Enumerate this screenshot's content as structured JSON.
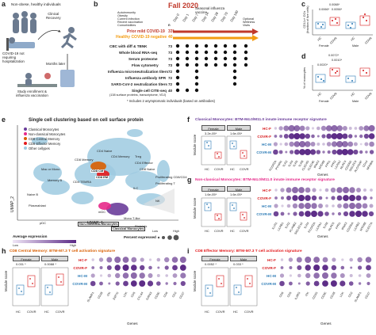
{
  "panels": {
    "a": {
      "label": "a",
      "non_obese": "Non-obese, healthy individuals",
      "clinical_recovery": "Clinical\nRecovery",
      "hosp": "COVID-19 not\nrequiring\nhospitalization",
      "months_later": "Months later",
      "study": "Study enrollment &\ninfluenza vaccination"
    },
    "b": {
      "label": "b",
      "title": "Fall 2020",
      "criteria": [
        "Autoimmunity",
        "Obesity",
        "Current infection",
        "Recent vaccination",
        "Comorbidities"
      ],
      "seasonal": "Seasonal influenza\nvaccine",
      "n_label": "n",
      "days": [
        "Day 0",
        "Day 1",
        "Day 7",
        "Day 14",
        "Day 28",
        "Day 70",
        "Day 100"
      ],
      "optional": "Optional\nWellness\nVisits",
      "prior_mild": "Prior mild COVID-19",
      "prior_n": "33*",
      "healthy": "Healthy COVID-19 negative",
      "healthy_n": "40",
      "assays": [
        {
          "name": "CBC with diff & TBNK",
          "n": "73"
        },
        {
          "name": "Whole blood RNA-seq",
          "n": "73"
        },
        {
          "name": "Serum proteome",
          "n": "73"
        },
        {
          "name": "Flow cytometry",
          "n": "73"
        },
        {
          "name": "Influenza microneutralization titers",
          "n": "72"
        },
        {
          "name": "Influenza antibody SPR",
          "n": "72"
        },
        {
          "name": "SARS-CoV-2 neutralization titers",
          "n": "72"
        },
        {
          "name": "Single cell CITE-seq",
          "n": "40"
        }
      ],
      "cite_sub": "(138 surface proteins, transcriptome, VDJ)",
      "footnote": "* Includes 2 asymptomatic individuals (based on antibodies)"
    },
    "c": {
      "label": "c",
      "ylabel": "CD11c+ DCs\n(fraction of live cells)",
      "p1": "0.0066*",
      "p2": "0.0056*",
      "p3": "0.0088*",
      "groups": [
        "HC",
        "COVR",
        "HC",
        "COVR"
      ],
      "sex": [
        "Female",
        "Male"
      ]
    },
    "d": {
      "label": "d",
      "ylabel": "% of monocytes",
      "p1": "0.0020*",
      "p2": "0.0010*",
      "p3": "0.0072*",
      "groups": [
        "HC",
        "COVR",
        "HC",
        "COVR"
      ],
      "sex": [
        "Female",
        "Male"
      ]
    },
    "e": {
      "label": "e",
      "title": "Single cell clustering based on cell surface protein",
      "legend": [
        {
          "name": "Classical Monocytes",
          "color": "#6a3d9a"
        },
        {
          "name": "Non-classical Monocytes",
          "color": "#e7298a"
        },
        {
          "name": "CD8 Central Memory",
          "color": "#d95f02"
        },
        {
          "name": "CD8 Effector Memory",
          "color": "#e31a1c"
        },
        {
          "name": "Other cellypes",
          "color": "#9ecae1"
        }
      ],
      "xlabel": "UMAP_1",
      "ylabel": "UMAP_2",
      "clusters": [
        "CD4 Naive",
        "CD4 Memory",
        "CD4 Effector",
        "CD8 Naive",
        "Treg",
        "CD8 Memory",
        "CD8 EM",
        "CD8 CM",
        "CD4 TEMRA",
        "Memory B",
        "Naive B",
        "Plasmablast",
        "Mac or Mono",
        "pDC",
        "mDC",
        "ILC",
        "NK",
        "Mono T-like",
        "Non-Classical Monocytes",
        "Classical Monocytes",
        "Platelets",
        "Proliferating CD8/CD4",
        "Proliferating T"
      ],
      "avg_expr": "Average expression",
      "pct_expr": "Percent expressed",
      "low": "Low",
      "high": "High"
    },
    "f": {
      "label": "f",
      "title": "Classical Monocytes: BTM-M4.0/M11.0 innate immune receptor signature",
      "ylabel": "Module score",
      "female": "Female",
      "male": "Male",
      "p_f": "3.2e-05*",
      "p_m": "1.6e-05*",
      "rows": [
        "HC-F",
        "COVR-F",
        "HC-M",
        "COVR-M"
      ],
      "genes_label": "Genes",
      "genes": [
        "FCGR2A",
        "PYHIN1",
        "TLR2",
        "TLR4",
        "TLR5",
        "TLR8",
        "CLEC4D",
        "CLEC4E",
        "IRAK3",
        "MYD88",
        "FPR1",
        "FPR2",
        "LILRA2",
        "NLRC4",
        "CD300E",
        "SIGLEC9",
        "ALOX5AP",
        "CD14",
        "NFKBIA"
      ]
    },
    "g": {
      "label": "g",
      "title": "Non-classical Monocytes: BTM-M4.0/M11.0 innate immune receptor signature",
      "ylabel": "Module score",
      "female": "Female",
      "male": "Male",
      "p_f": "1.6e-05*",
      "p_m": "1.6e-05*",
      "rows": [
        "HC-F",
        "COVR-F",
        "HC-M",
        "COVR-M"
      ],
      "genes_label": "Genes",
      "genes": [
        "ILLR1",
        "LILRB1",
        "TLR2",
        "PLXNB2",
        "SIGLEC10",
        "TLR4",
        "FCGR2A",
        "LILRA1",
        "TLR8",
        "NLRC5",
        "FPR1",
        "IRAK3",
        "CD300A",
        "LILRB2",
        "MYD88",
        "CLEC7A"
      ]
    },
    "h": {
      "label": "h",
      "title": "CD8 Central Memory: BTM-M7.3 T cell activation signature",
      "ylabel": "Module score",
      "female": "Female",
      "male": "Male",
      "p_f": "0.031 *",
      "p_m": "0.0088 *",
      "rows": [
        "HC-F",
        "COVR-F",
        "HC-M",
        "COVR-M"
      ],
      "genes_label": "Genes",
      "genes": [
        "SLAMF1",
        "CD28",
        "ITK",
        "ZAP70",
        "LCK",
        "CD5",
        "CTLA4",
        "GATA3",
        "CD3E",
        "CD6",
        "CD2",
        "CD27"
      ],
      "xgroups": [
        "HC",
        "COVR",
        "HC",
        "COVR"
      ]
    },
    "i": {
      "label": "i",
      "title": "CD8 Effector Memory: BTM-M7.3 T cell activation signature",
      "ylabel": "Module score",
      "female": "Female",
      "male": "Male",
      "p_f": "0.0052 *",
      "p_m": "0.033 *",
      "rows": [
        "HC-F",
        "COVR-F",
        "HC-M",
        "COVR-M"
      ],
      "genes_label": "Genes",
      "genes": [
        "CD6",
        "CD5",
        "IL2RG",
        "ITK",
        "CD3G",
        "CD3E",
        "CD28",
        "LCK",
        "CD2",
        "SLAMF1",
        "CD27"
      ],
      "xgroups": [
        "HC",
        "COVR",
        "HC",
        "COVR"
      ]
    }
  },
  "colors": {
    "hc": "#2c7bb6",
    "covr": "#d7191c",
    "healthy_neg": "#f39c12",
    "prior": "#c0392b",
    "dot_low": "#f0e6f6",
    "dot_high": "#5b2a86"
  }
}
